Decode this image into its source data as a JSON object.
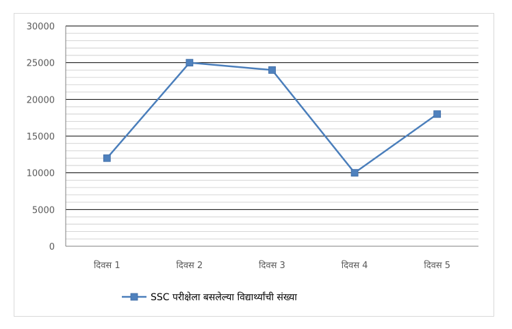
{
  "chart_data": {
    "type": "line",
    "categories": [
      "दिवस 1",
      "दिवस 2",
      "दिवस 3",
      "दिवस 4",
      "दिवस 5"
    ],
    "series": [
      {
        "name": "SSC परीक्षेला बसलेल्या विद्यार्थ्यांची संख्या",
        "values": [
          12000,
          25000,
          24000,
          10000,
          18000
        ]
      }
    ],
    "ylim": [
      0,
      30000
    ],
    "yticks": [
      "0",
      "5000",
      "10000",
      "15000",
      "20000",
      "25000",
      "30000"
    ],
    "ytick_values": [
      0,
      5000,
      10000,
      15000,
      20000,
      25000,
      30000
    ],
    "minor_step": 1000,
    "grid": true,
    "legend_position": "bottom",
    "colors": {
      "series": "#4a7ebb",
      "marker": "#4f81bd",
      "major_grid": "#000000",
      "minor_grid": "#c8c8c8",
      "axis": "#7f7f7f",
      "tick_text": "#595959"
    }
  }
}
